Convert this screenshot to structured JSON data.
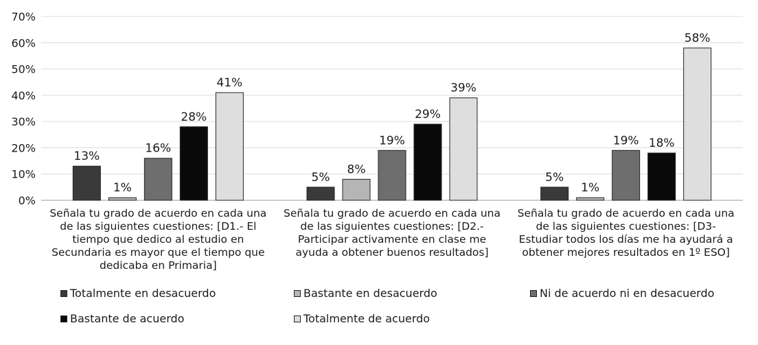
{
  "chart_data": {
    "type": "bar",
    "categories": [
      "Señala tu grado de acuerdo en cada una de las siguientes cuestiones: [D1.- El tiempo que dedico al estudio en Secundaria es mayor que el tiempo que dedicaba en Primaria]",
      "Señala tu grado de acuerdo en cada una de las siguientes cuestiones: [D2.- Participar activamente en clase me ayuda a obtener buenos resultados]",
      "Señala tu grado de acuerdo en cada una de las siguientes cuestiones: [D3- Estudiar todos los días me ha ayudará a obtener mejores resultados en 1º ESO]"
    ],
    "series": [
      {
        "name": "Totalmente en desacuerdo",
        "values": [
          13,
          5,
          5
        ],
        "labels": [
          "13%",
          "5%",
          "5%"
        ],
        "color": "#3a3a3a"
      },
      {
        "name": "Bastante en desacuerdo",
        "values": [
          1,
          8,
          1
        ],
        "labels": [
          "1%",
          "8%",
          "1%"
        ],
        "color": "#b5b5b5"
      },
      {
        "name": "Ni de acuerdo ni en desacuerdo",
        "values": [
          16,
          19,
          19
        ],
        "labels": [
          "16%",
          "19%",
          "19%"
        ],
        "color": "#6e6e6e"
      },
      {
        "name": "Bastante de acuerdo",
        "values": [
          28,
          29,
          18
        ],
        "labels": [
          "28%",
          "29%",
          "18%"
        ],
        "color": "#0a0a0a"
      },
      {
        "name": "Totalmente de acuerdo",
        "values": [
          41,
          39,
          58
        ],
        "labels": [
          "41%",
          "39%",
          "58%"
        ],
        "color": "#dedede"
      }
    ],
    "y_ticks": [
      "0%",
      "10%",
      "20%",
      "30%",
      "40%",
      "50%",
      "60%",
      "70%"
    ],
    "ylim": [
      0,
      70
    ],
    "grid": true,
    "legend_position": "bottom"
  }
}
